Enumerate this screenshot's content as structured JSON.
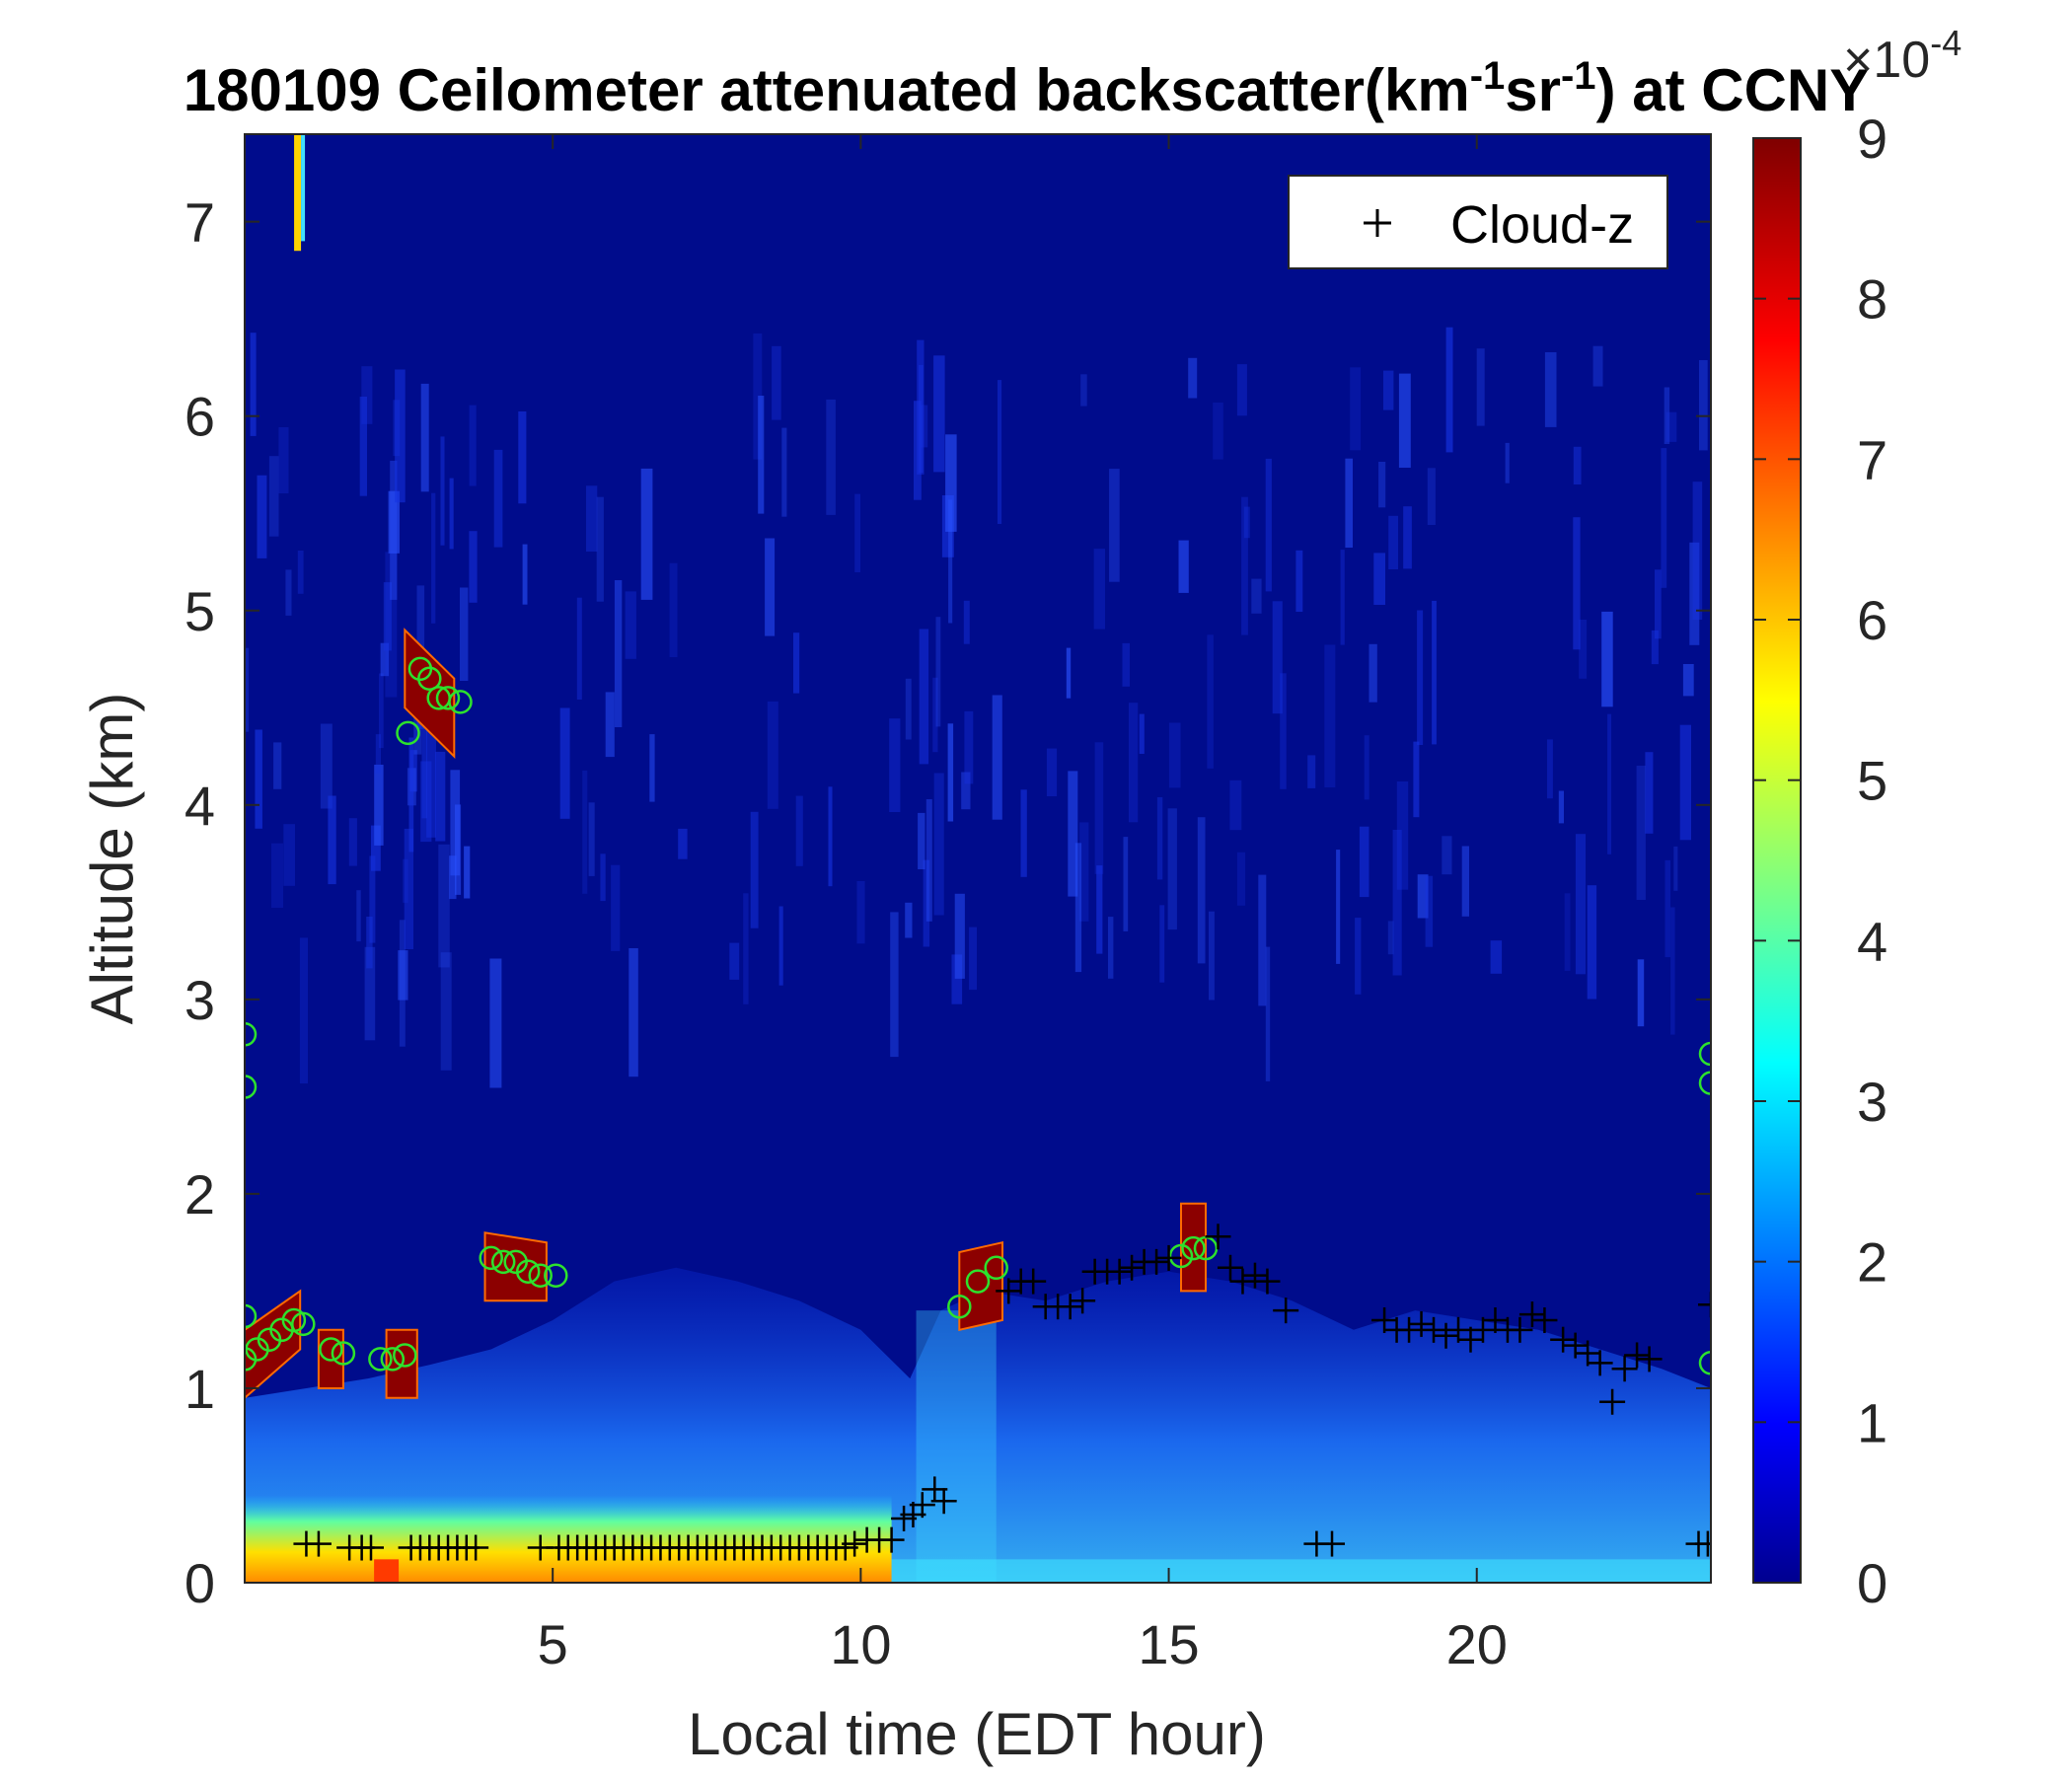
{
  "chart_data": {
    "type": "heatmap",
    "title": {
      "prefix": "180109 Ceilometer attenuated backscatter(km",
      "sup1": "-1",
      "mid": "sr",
      "sup2": "-1",
      "suffix": ") at CCNY"
    },
    "xlabel": "Local time (EDT hour)",
    "ylabel": "Altitude (km)",
    "xlim": [
      0,
      23.8
    ],
    "ylim": [
      0,
      7.45
    ],
    "xticks": [
      5,
      10,
      15,
      20
    ],
    "yticks": [
      0,
      1,
      2,
      3,
      4,
      5,
      6,
      7
    ],
    "colorbar": {
      "label_base": "×10",
      "label_exp": "-4",
      "range": [
        0,
        9
      ],
      "ticks": [
        0,
        1,
        2,
        3,
        4,
        5,
        6,
        7,
        8,
        9
      ],
      "colormap": "jet"
    },
    "legend": {
      "label": "Cloud-z",
      "marker": "+",
      "position": "top-right"
    },
    "boundary_layer_top_km": [
      [
        0.0,
        0.95
      ],
      [
        1.0,
        1.0
      ],
      [
        2.0,
        1.05
      ],
      [
        3.0,
        1.12
      ],
      [
        4.0,
        1.2
      ],
      [
        5.0,
        1.35
      ],
      [
        6.0,
        1.55
      ],
      [
        7.0,
        1.62
      ],
      [
        8.0,
        1.55
      ],
      [
        9.0,
        1.45
      ],
      [
        10.0,
        1.3
      ],
      [
        10.8,
        1.05
      ],
      [
        11.3,
        1.4
      ],
      [
        12.0,
        1.5
      ],
      [
        13.0,
        1.45
      ],
      [
        14.0,
        1.55
      ],
      [
        15.0,
        1.6
      ],
      [
        16.0,
        1.55
      ],
      [
        17.0,
        1.45
      ],
      [
        18.0,
        1.3
      ],
      [
        19.0,
        1.4
      ],
      [
        20.0,
        1.35
      ],
      [
        21.0,
        1.3
      ],
      [
        22.0,
        1.2
      ],
      [
        23.0,
        1.1
      ],
      [
        23.8,
        1.0
      ]
    ],
    "strong_cloud_layers": [
      {
        "x0": 0.0,
        "x1": 0.9,
        "base_start": 0.95,
        "base_end": 1.2,
        "top_start": 1.3,
        "top_end": 1.5
      },
      {
        "x0": 1.2,
        "x1": 1.6,
        "base_start": 1.0,
        "base_end": 1.0,
        "top_start": 1.3,
        "top_end": 1.3
      },
      {
        "x0": 2.3,
        "x1": 2.8,
        "base_start": 0.95,
        "base_end": 0.95,
        "top_start": 1.3,
        "top_end": 1.3
      },
      {
        "x0": 2.6,
        "x1": 3.4,
        "base_start": 4.5,
        "base_end": 4.25,
        "top_start": 4.9,
        "top_end": 4.65
      },
      {
        "x0": 3.9,
        "x1": 4.9,
        "base_start": 1.45,
        "base_end": 1.45,
        "top_start": 1.8,
        "top_end": 1.75
      },
      {
        "x0": 11.6,
        "x1": 12.3,
        "base_start": 1.3,
        "base_end": 1.35,
        "top_start": 1.7,
        "top_end": 1.75
      },
      {
        "x0": 15.2,
        "x1": 15.6,
        "base_start": 1.5,
        "base_end": 1.5,
        "top_start": 1.95,
        "top_end": 1.95
      }
    ],
    "cloud_z_points": [
      [
        1.0,
        0.2
      ],
      [
        1.2,
        0.2
      ],
      [
        1.7,
        0.18
      ],
      [
        1.9,
        0.18
      ],
      [
        2.05,
        0.18
      ],
      [
        2.7,
        0.18
      ],
      [
        2.85,
        0.18
      ],
      [
        3.0,
        0.18
      ],
      [
        3.15,
        0.18
      ],
      [
        3.3,
        0.18
      ],
      [
        3.45,
        0.18
      ],
      [
        3.6,
        0.18
      ],
      [
        3.75,
        0.18
      ],
      [
        4.8,
        0.18
      ],
      [
        5.1,
        0.18
      ],
      [
        5.25,
        0.18
      ],
      [
        5.4,
        0.18
      ],
      [
        5.55,
        0.18
      ],
      [
        5.7,
        0.18
      ],
      [
        5.85,
        0.18
      ],
      [
        6.0,
        0.18
      ],
      [
        6.15,
        0.18
      ],
      [
        6.3,
        0.18
      ],
      [
        6.45,
        0.18
      ],
      [
        6.6,
        0.18
      ],
      [
        6.75,
        0.18
      ],
      [
        6.9,
        0.18
      ],
      [
        7.05,
        0.18
      ],
      [
        7.2,
        0.18
      ],
      [
        7.35,
        0.18
      ],
      [
        7.5,
        0.18
      ],
      [
        7.65,
        0.18
      ],
      [
        7.8,
        0.18
      ],
      [
        7.95,
        0.18
      ],
      [
        8.1,
        0.18
      ],
      [
        8.25,
        0.18
      ],
      [
        8.4,
        0.18
      ],
      [
        8.55,
        0.18
      ],
      [
        8.7,
        0.18
      ],
      [
        8.85,
        0.18
      ],
      [
        9.0,
        0.18
      ],
      [
        9.15,
        0.18
      ],
      [
        9.3,
        0.18
      ],
      [
        9.45,
        0.18
      ],
      [
        9.6,
        0.18
      ],
      [
        9.75,
        0.18
      ],
      [
        9.9,
        0.2
      ],
      [
        10.1,
        0.22
      ],
      [
        10.3,
        0.22
      ],
      [
        10.5,
        0.22
      ],
      [
        10.7,
        0.33
      ],
      [
        10.85,
        0.35
      ],
      [
        11.0,
        0.4
      ],
      [
        11.2,
        0.48
      ],
      [
        11.35,
        0.42
      ],
      [
        12.4,
        1.5
      ],
      [
        12.6,
        1.55
      ],
      [
        12.8,
        1.55
      ],
      [
        13.0,
        1.42
      ],
      [
        13.2,
        1.42
      ],
      [
        13.4,
        1.42
      ],
      [
        13.6,
        1.45
      ],
      [
        13.8,
        1.6
      ],
      [
        14.0,
        1.6
      ],
      [
        14.2,
        1.6
      ],
      [
        14.4,
        1.62
      ],
      [
        14.6,
        1.65
      ],
      [
        14.8,
        1.65
      ],
      [
        15.0,
        1.67
      ],
      [
        15.8,
        1.78
      ],
      [
        16.0,
        1.62
      ],
      [
        16.2,
        1.55
      ],
      [
        16.4,
        1.58
      ],
      [
        16.6,
        1.55
      ],
      [
        16.9,
        1.4
      ],
      [
        17.4,
        0.2
      ],
      [
        17.65,
        0.2
      ],
      [
        18.5,
        1.35
      ],
      [
        18.7,
        1.3
      ],
      [
        18.9,
        1.3
      ],
      [
        19.1,
        1.33
      ],
      [
        19.3,
        1.3
      ],
      [
        19.5,
        1.27
      ],
      [
        19.7,
        1.3
      ],
      [
        19.9,
        1.25
      ],
      [
        20.1,
        1.3
      ],
      [
        20.3,
        1.35
      ],
      [
        20.5,
        1.3
      ],
      [
        20.7,
        1.3
      ],
      [
        20.9,
        1.38
      ],
      [
        21.1,
        1.35
      ],
      [
        21.4,
        1.25
      ],
      [
        21.6,
        1.22
      ],
      [
        21.8,
        1.18
      ],
      [
        22.0,
        1.13
      ],
      [
        22.2,
        0.93
      ],
      [
        22.4,
        1.1
      ],
      [
        22.6,
        1.17
      ],
      [
        22.8,
        1.15
      ],
      [
        23.6,
        0.2
      ],
      [
        23.75,
        0.2
      ],
      [
        23.8,
        1.43
      ]
    ],
    "circle_points": [
      [
        0.0,
        2.82
      ],
      [
        0.0,
        2.55
      ],
      [
        0.0,
        1.37
      ],
      [
        0.0,
        1.15
      ],
      [
        0.2,
        1.2
      ],
      [
        0.4,
        1.25
      ],
      [
        0.6,
        1.3
      ],
      [
        0.8,
        1.35
      ],
      [
        0.95,
        1.33
      ],
      [
        1.4,
        1.2
      ],
      [
        1.6,
        1.18
      ],
      [
        2.2,
        1.15
      ],
      [
        2.4,
        1.15
      ],
      [
        2.6,
        1.17
      ],
      [
        2.65,
        4.37
      ],
      [
        2.85,
        4.7
      ],
      [
        3.0,
        4.65
      ],
      [
        3.15,
        4.55
      ],
      [
        3.3,
        4.55
      ],
      [
        3.5,
        4.53
      ],
      [
        4.0,
        1.67
      ],
      [
        4.2,
        1.65
      ],
      [
        4.4,
        1.65
      ],
      [
        4.6,
        1.6
      ],
      [
        4.8,
        1.58
      ],
      [
        5.05,
        1.58
      ],
      [
        11.6,
        1.42
      ],
      [
        11.9,
        1.55
      ],
      [
        12.2,
        1.62
      ],
      [
        15.2,
        1.68
      ],
      [
        15.4,
        1.72
      ],
      [
        15.6,
        1.72
      ],
      [
        23.8,
        2.72
      ],
      [
        23.8,
        2.57
      ],
      [
        23.8,
        1.13
      ]
    ]
  }
}
